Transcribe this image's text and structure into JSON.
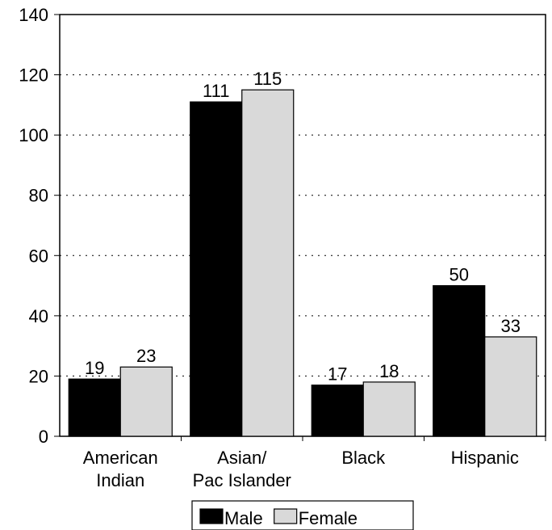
{
  "chart_data": {
    "type": "bar",
    "categories": [
      [
        "American",
        "Indian"
      ],
      [
        "Asian/",
        "Pac Islander"
      ],
      [
        "Black"
      ],
      [
        "Hispanic"
      ]
    ],
    "series": [
      {
        "name": "Male",
        "values": [
          19,
          111,
          17,
          50
        ],
        "color": "#000000"
      },
      {
        "name": "Female",
        "values": [
          23,
          115,
          18,
          33
        ],
        "color": "#d9d9d9"
      }
    ],
    "ylim": [
      0,
      140
    ],
    "yticks": [
      0,
      20,
      40,
      60,
      80,
      100,
      120,
      140
    ],
    "grid": "dotted horizontal",
    "legend_position": "bottom-center",
    "data_labels": true
  }
}
